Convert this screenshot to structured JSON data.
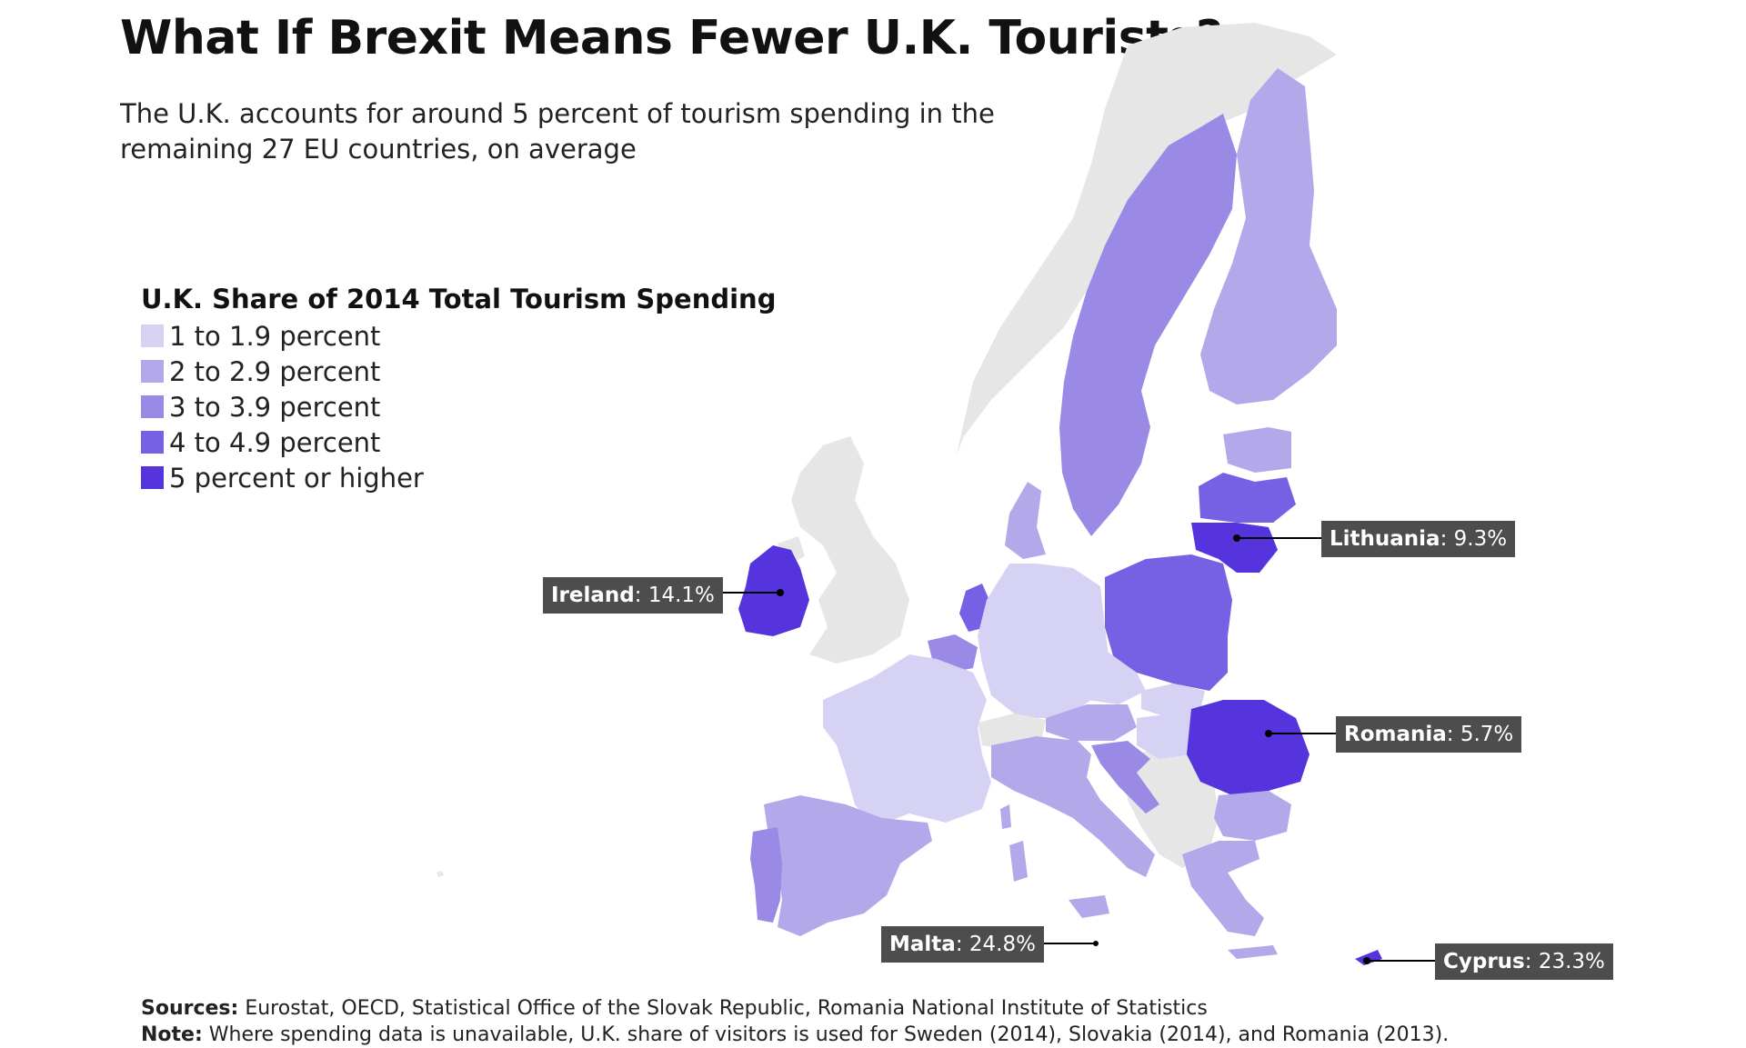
{
  "title": "What If Brexit Means Fewer U.K. Tourists?",
  "subtitle": "The U.K. accounts for around 5 percent of tourism spending in the remaining 27 EU countries, on average",
  "colors": {
    "no_data": "#e6e6e6",
    "bin1": "#d6d2f3",
    "bin2": "#b2a8ea",
    "bin3": "#9a8ae6",
    "bin4": "#7660e3",
    "bin5": "#5634dd",
    "label_bg": "#4d4d4d"
  },
  "legend": {
    "title": "U.K. Share of 2014 Total Tourism Spending",
    "items": [
      {
        "label": "1 to 1.9 percent",
        "color": "#d6d2f3"
      },
      {
        "label": "2 to 2.9 percent",
        "color": "#b2a8ea"
      },
      {
        "label": "3 to 3.9 percent",
        "color": "#9a8ae6"
      },
      {
        "label": "4 to 4.9 percent",
        "color": "#7660e3"
      },
      {
        "label": "5 percent or higher",
        "color": "#5634dd"
      }
    ]
  },
  "callouts": {
    "ireland": {
      "name": "Ireland",
      "value": "14.1%"
    },
    "lithuania": {
      "name": "Lithuania",
      "value": "9.3%"
    },
    "romania": {
      "name": "Romania",
      "value": "5.7%"
    },
    "malta": {
      "name": "Malta",
      "value": "24.8%"
    },
    "cyprus": {
      "name": "Cyprus",
      "value": "23.3%"
    }
  },
  "footer": {
    "sources_label": "Sources:",
    "sources_text": "Eurostat, OECD, Statistical Office of the Slovak Republic, Romania National Institute of Statistics",
    "note_label": "Note:",
    "note_text": "Where spending data is unavailable, U.K. share of visitors is used for Sweden (2014), Slovakia (2014), and Romania (2013)."
  }
}
